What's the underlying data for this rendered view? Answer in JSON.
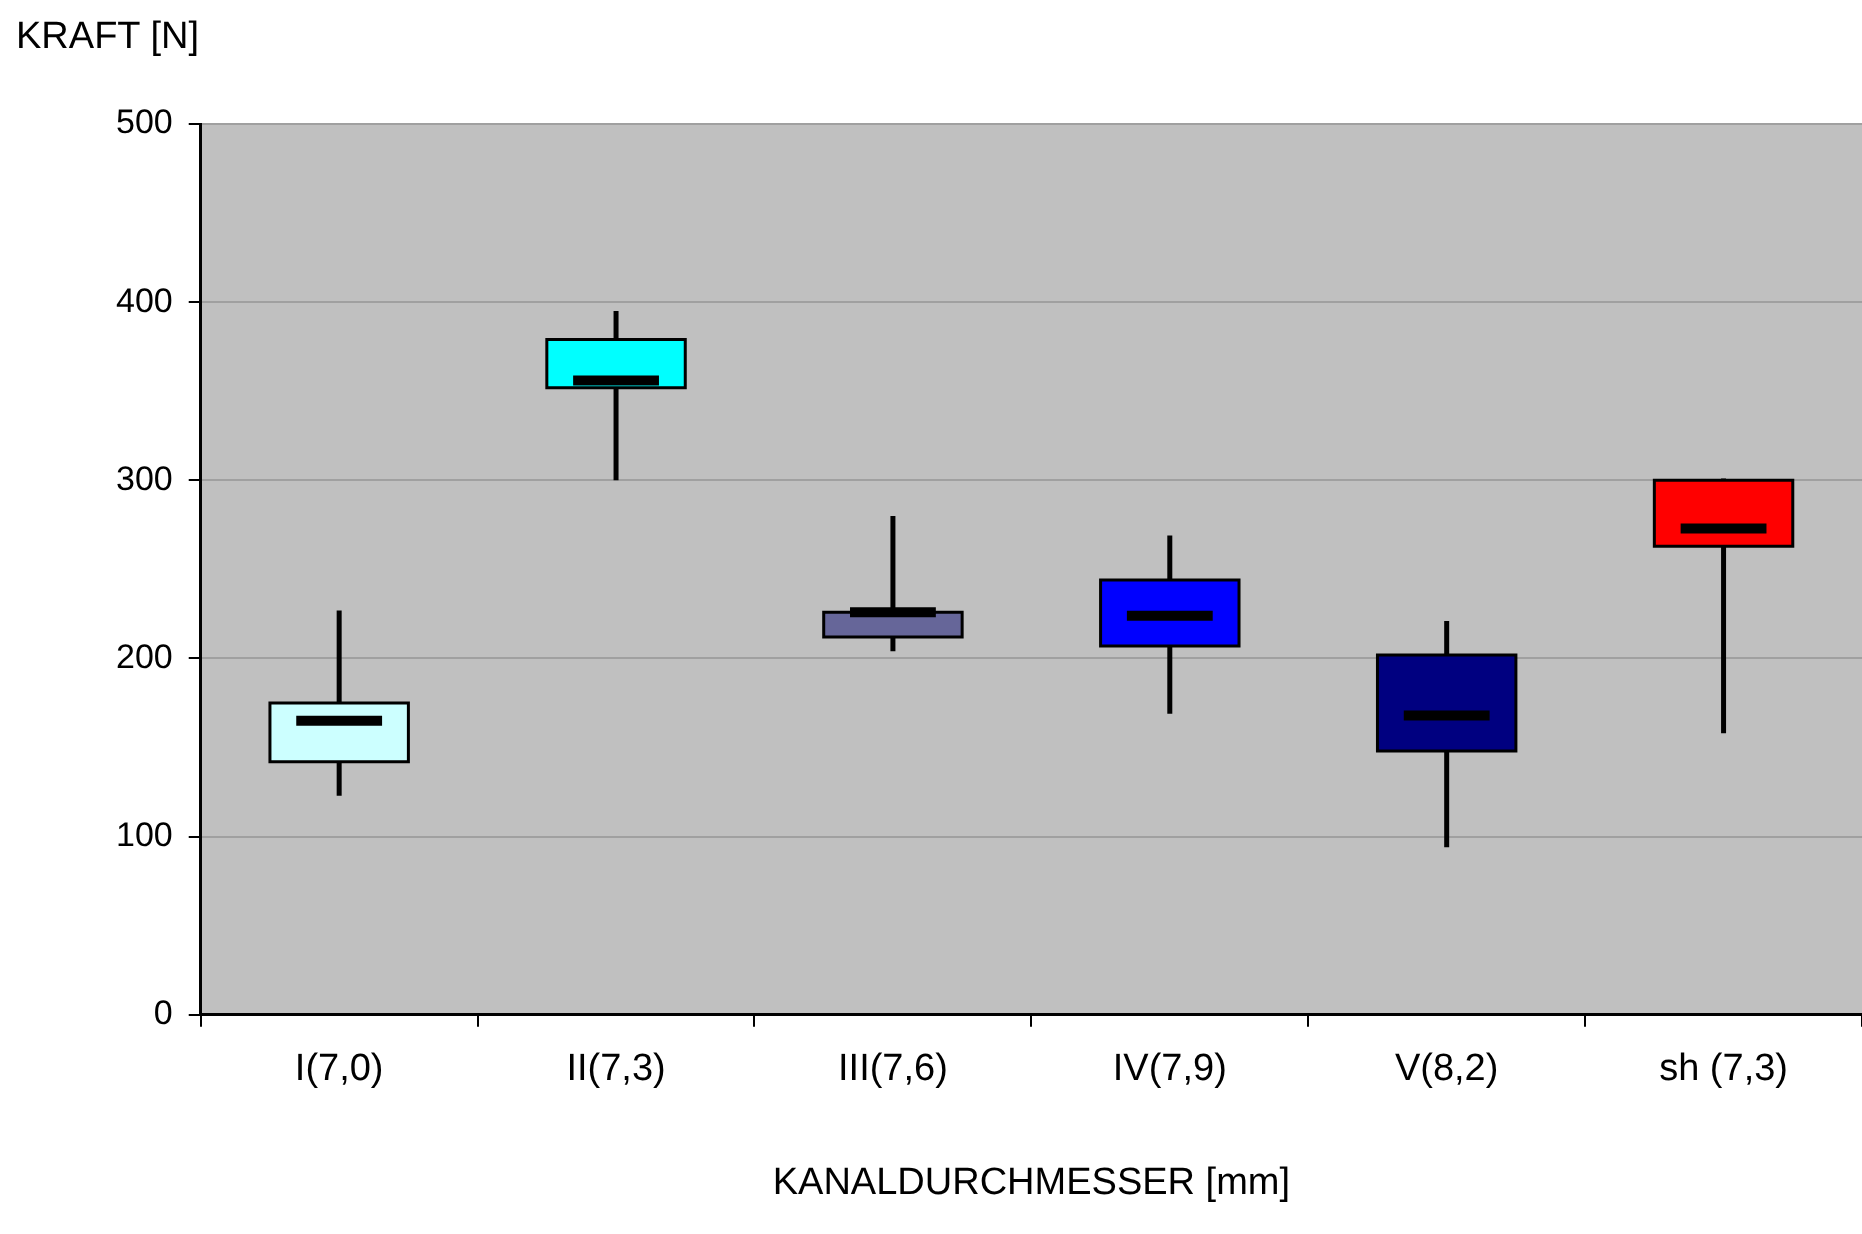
{
  "chart_data": {
    "type": "box",
    "ylabel": "KRAFT [N]",
    "xlabel": "KANALDURCHMESSER [mm]",
    "categories": [
      "I(7,0)",
      "II(7,3)",
      "III(7,6)",
      "IV(7,9)",
      "V(8,2)",
      "sh (7,3)"
    ],
    "colors": [
      "#ccffff",
      "#00ffff",
      "#666699",
      "#0000ff",
      "#000080",
      "#ff0000"
    ],
    "boxes": [
      {
        "low": 123,
        "q1": 142,
        "median": 165,
        "q3": 175,
        "high": 227
      },
      {
        "low": 300,
        "q1": 352,
        "median": 356,
        "q3": 379,
        "high": 395
      },
      {
        "low": 204,
        "q1": 212,
        "median": 226,
        "q3": 226,
        "high": 280
      },
      {
        "low": 169,
        "q1": 207,
        "median": 224,
        "q3": 244,
        "high": 269
      },
      {
        "low": 94,
        "q1": 148,
        "median": 168,
        "q3": 202,
        "high": 221
      },
      {
        "low": 158,
        "q1": 263,
        "median": 273,
        "q3": 300,
        "high": 301
      }
    ],
    "ylim": [
      0,
      500
    ],
    "yticks": [
      0,
      100,
      200,
      300,
      400,
      500
    ],
    "grid": "y",
    "legend": false
  }
}
